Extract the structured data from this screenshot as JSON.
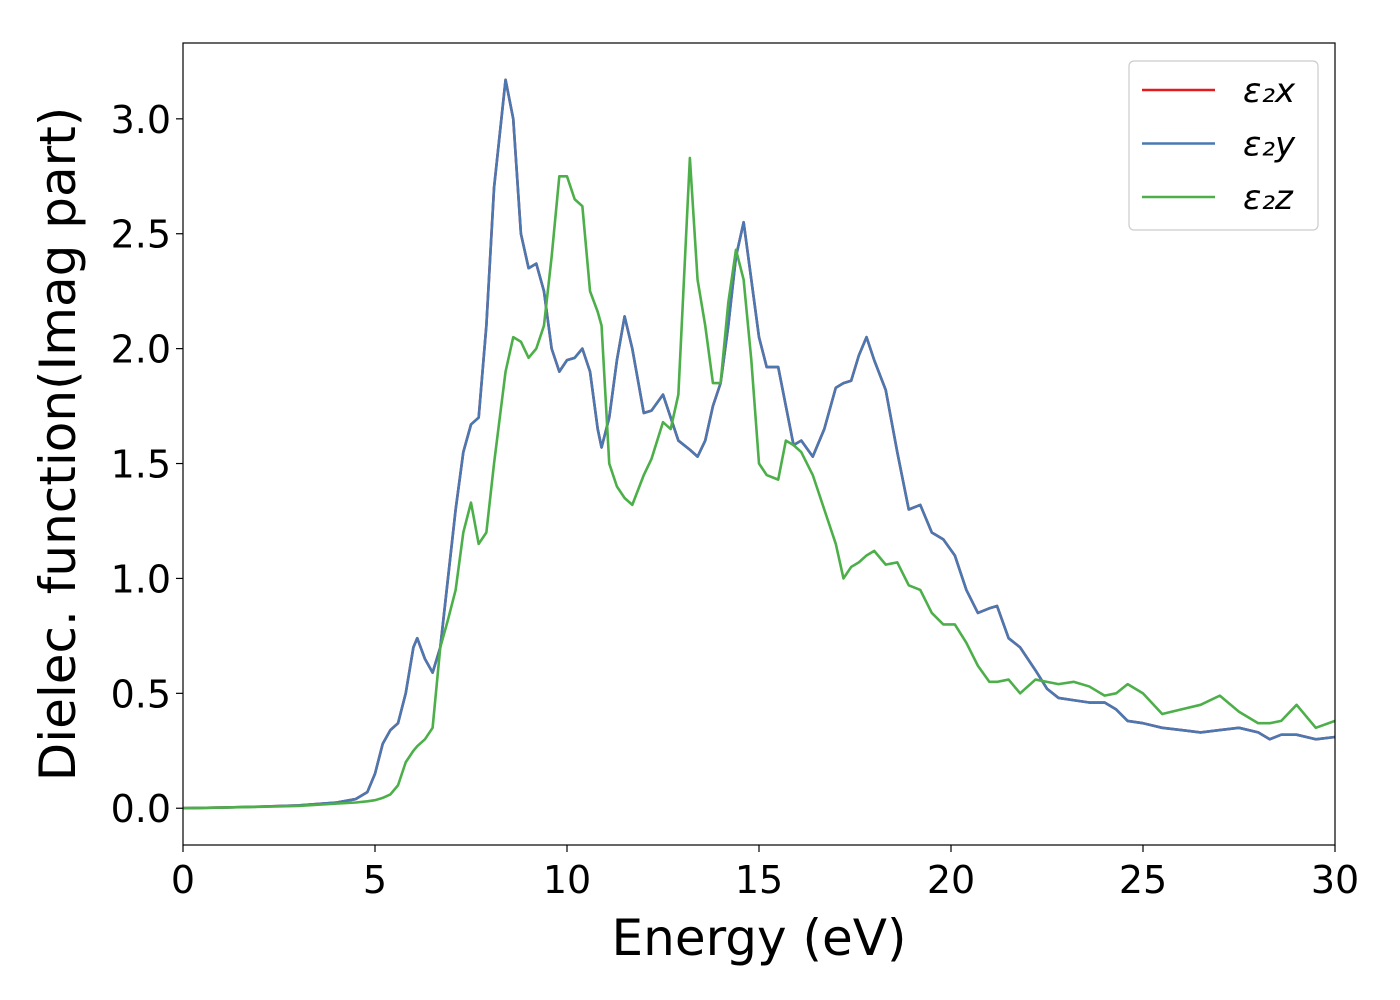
{
  "chart_data": {
    "type": "line",
    "xlabel": "Energy (eV)",
    "ylabel": "Dielec. function(Imag part)",
    "xlim": [
      0,
      30
    ],
    "ylim": [
      -0.16,
      3.33
    ],
    "xticks": [
      0,
      5,
      10,
      15,
      20,
      25,
      30
    ],
    "yticks": [
      {
        "value": 0,
        "label": "0.0"
      },
      0.5,
      {
        "value": 1,
        "label": "1.0"
      },
      1.5,
      {
        "value": 2,
        "label": "2.0"
      },
      2.5,
      {
        "value": 3,
        "label": "3.0"
      }
    ],
    "legend": "upper right",
    "x": [
      0,
      1,
      2,
      3,
      4,
      4.5,
      4.8,
      5,
      5.2,
      5.4,
      5.6,
      5.8,
      6,
      6.1,
      6.3,
      6.5,
      6.7,
      6.9,
      7.1,
      7.3,
      7.5,
      7.7,
      7.9,
      8.1,
      8.4,
      8.6,
      8.8,
      9,
      9.2,
      9.4,
      9.6,
      9.8,
      10,
      10.2,
      10.4,
      10.6,
      10.8,
      10.9,
      11.1,
      11.3,
      11.5,
      11.7,
      12,
      12.2,
      12.5,
      12.7,
      12.9,
      13.2,
      13.4,
      13.6,
      13.8,
      14,
      14.2,
      14.4,
      14.6,
      14.8,
      15,
      15.2,
      15.5,
      15.7,
      15.9,
      16.1,
      16.4,
      16.7,
      17,
      17.2,
      17.4,
      17.6,
      17.8,
      18,
      18.3,
      18.6,
      18.9,
      19.2,
      19.5,
      19.8,
      20.1,
      20.4,
      20.7,
      21,
      21.2,
      21.5,
      21.8,
      22.2,
      22.5,
      22.8,
      23.2,
      23.6,
      24,
      24.3,
      24.6,
      25,
      25.5,
      26,
      26.5,
      27,
      27.5,
      28,
      28.3,
      28.6,
      29,
      29.5,
      30
    ],
    "series": [
      {
        "name": "ε₂x",
        "color": "#e41a1c",
        "values": [
          0,
          0.003,
          0.007,
          0.012,
          0.025,
          0.04,
          0.07,
          0.15,
          0.28,
          0.34,
          0.37,
          0.5,
          0.7,
          0.74,
          0.65,
          0.59,
          0.7,
          1.0,
          1.3,
          1.55,
          1.67,
          1.7,
          2.1,
          2.7,
          3.17,
          3.0,
          2.5,
          2.35,
          2.37,
          2.25,
          2.0,
          1.9,
          1.95,
          1.96,
          2.0,
          1.9,
          1.65,
          1.57,
          1.7,
          1.95,
          2.14,
          2.0,
          1.72,
          1.73,
          1.8,
          1.7,
          1.6,
          1.56,
          1.53,
          1.6,
          1.75,
          1.85,
          2.1,
          2.4,
          2.55,
          2.3,
          2.05,
          1.92,
          1.92,
          1.75,
          1.58,
          1.6,
          1.53,
          1.65,
          1.83,
          1.85,
          1.86,
          1.97,
          2.05,
          1.95,
          1.82,
          1.55,
          1.3,
          1.32,
          1.2,
          1.17,
          1.1,
          0.95,
          0.85,
          0.87,
          0.88,
          0.74,
          0.7,
          0.6,
          0.52,
          0.48,
          0.47,
          0.46,
          0.46,
          0.43,
          0.38,
          0.37,
          0.35,
          0.34,
          0.33,
          0.34,
          0.35,
          0.33,
          0.3,
          0.32,
          0.32,
          0.3,
          0.31
        ]
      },
      {
        "name": "ε₂y",
        "color": "#4a78b0",
        "values": [
          0,
          0.003,
          0.007,
          0.012,
          0.025,
          0.04,
          0.07,
          0.15,
          0.28,
          0.34,
          0.37,
          0.5,
          0.7,
          0.74,
          0.65,
          0.59,
          0.7,
          1.0,
          1.3,
          1.55,
          1.67,
          1.7,
          2.1,
          2.7,
          3.17,
          3.0,
          2.5,
          2.35,
          2.37,
          2.25,
          2.0,
          1.9,
          1.95,
          1.96,
          2.0,
          1.9,
          1.65,
          1.57,
          1.7,
          1.95,
          2.14,
          2.0,
          1.72,
          1.73,
          1.8,
          1.7,
          1.6,
          1.56,
          1.53,
          1.6,
          1.75,
          1.85,
          2.1,
          2.4,
          2.55,
          2.3,
          2.05,
          1.92,
          1.92,
          1.75,
          1.58,
          1.6,
          1.53,
          1.65,
          1.83,
          1.85,
          1.86,
          1.97,
          2.05,
          1.95,
          1.82,
          1.55,
          1.3,
          1.32,
          1.2,
          1.17,
          1.1,
          0.95,
          0.85,
          0.87,
          0.88,
          0.74,
          0.7,
          0.6,
          0.52,
          0.48,
          0.47,
          0.46,
          0.46,
          0.43,
          0.38,
          0.37,
          0.35,
          0.34,
          0.33,
          0.34,
          0.35,
          0.33,
          0.3,
          0.32,
          0.32,
          0.3,
          0.31
        ]
      },
      {
        "name": "ε₂z",
        "color": "#4daf4a",
        "values": [
          0,
          0.003,
          0.006,
          0.01,
          0.02,
          0.025,
          0.03,
          0.035,
          0.045,
          0.06,
          0.1,
          0.2,
          0.25,
          0.27,
          0.3,
          0.35,
          0.7,
          0.82,
          0.95,
          1.2,
          1.33,
          1.15,
          1.2,
          1.5,
          1.9,
          2.05,
          2.03,
          1.96,
          2.0,
          2.1,
          2.4,
          2.75,
          2.75,
          2.65,
          2.62,
          2.25,
          2.16,
          2.1,
          1.5,
          1.4,
          1.35,
          1.32,
          1.45,
          1.52,
          1.68,
          1.65,
          1.8,
          2.83,
          2.3,
          2.1,
          1.85,
          1.85,
          2.2,
          2.43,
          2.3,
          1.95,
          1.5,
          1.45,
          1.43,
          1.6,
          1.58,
          1.55,
          1.45,
          1.3,
          1.15,
          1.0,
          1.05,
          1.07,
          1.1,
          1.12,
          1.06,
          1.07,
          0.97,
          0.95,
          0.85,
          0.8,
          0.8,
          0.72,
          0.62,
          0.55,
          0.55,
          0.56,
          0.5,
          0.56,
          0.55,
          0.54,
          0.55,
          0.53,
          0.49,
          0.5,
          0.54,
          0.5,
          0.41,
          0.43,
          0.45,
          0.49,
          0.42,
          0.37,
          0.37,
          0.38,
          0.45,
          0.35,
          0.38
        ]
      }
    ]
  }
}
